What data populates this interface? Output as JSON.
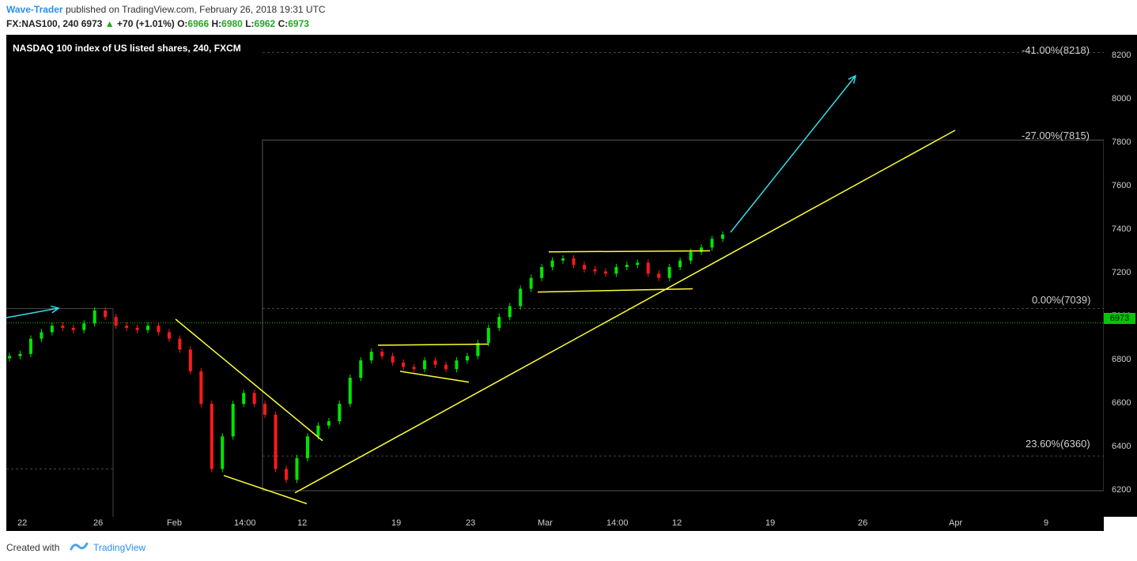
{
  "header": {
    "author": "Wave-Trader",
    "published_text": "published on TradingView.com, February 26, 2018 19:31 UTC",
    "symbol": "FX:NAS100, 240",
    "last": "6973",
    "change_arrow": "▲",
    "change": "+70 (+1.01%)",
    "open_label": "O:",
    "open": "6966",
    "high_label": "H:",
    "high": "6980",
    "low_label": "L:",
    "low": "6962",
    "close_label": "C:",
    "close": "6973"
  },
  "chart": {
    "title": "NASDAQ 100 index of US listed shares, 240, FXCM",
    "fib_levels": [
      {
        "label": "-41.00%(8218)",
        "price": 8218
      },
      {
        "label": "-27.00%(7815)",
        "price": 7815
      },
      {
        "label": "0.00%(7039)",
        "price": 7039
      },
      {
        "label": "23.60%(6360)",
        "price": 6360
      }
    ],
    "current_price_tag": "6973",
    "price_axis_ticks": [
      "8200",
      "8000",
      "7800",
      "7600",
      "7400",
      "7200",
      "7000",
      "6800",
      "6600",
      "6400",
      "6200"
    ],
    "time_axis_ticks": [
      "22",
      "26",
      "Feb",
      "14:00",
      "12",
      "19",
      "23",
      "Mar",
      "14:00",
      "12",
      "19",
      "26",
      "Apr",
      "9"
    ],
    "colors": {
      "background": "#000000",
      "up_candle": "#00e600",
      "down_candle": "#ff1a1a",
      "trendline": "#ffff33",
      "arrow": "#33ddee",
      "current_price": "#00c800"
    }
  },
  "chart_data": {
    "type": "candlestick",
    "title": "NASDAQ 100 index of US listed shares, 240, FXCM",
    "ylim": [
      6080,
      8300
    ],
    "y_ticks": [
      6200,
      6400,
      6600,
      6800,
      7000,
      7200,
      7400,
      7600,
      7800,
      8000,
      8200
    ],
    "x_ticks": [
      "22",
      "26",
      "Feb",
      "14:00",
      "12",
      "19",
      "23",
      "Mar",
      "14:00",
      "12",
      "19",
      "26",
      "Apr",
      "9"
    ],
    "series": [
      {
        "name": "close",
        "values": [
          6820,
          6830,
          6900,
          6930,
          6960,
          6950,
          6940,
          6970,
          7030,
          7000,
          6960,
          6950,
          6940,
          6960,
          6930,
          6900,
          6850,
          6750,
          6600,
          6300,
          6450,
          6600,
          6650,
          6600,
          6550,
          6300,
          6250,
          6350,
          6450,
          6500,
          6520,
          6600,
          6720,
          6800,
          6840,
          6820,
          6790,
          6770,
          6760,
          6800,
          6780,
          6760,
          6800,
          6820,
          6880,
          6950,
          7000,
          7050,
          7130,
          7180,
          7230,
          7260,
          7270,
          7240,
          7220,
          7210,
          7200,
          7230,
          7240,
          7250,
          7200,
          7180,
          7230,
          7260,
          7300,
          7320,
          7360,
          7380
        ]
      }
    ],
    "annotations": [
      "-41.00%(8218)",
      "-27.00%(7815)",
      "0.00%(7039)",
      "23.60%(6360)"
    ]
  },
  "footer": {
    "created_with": "Created with",
    "brand": "TradingView"
  }
}
